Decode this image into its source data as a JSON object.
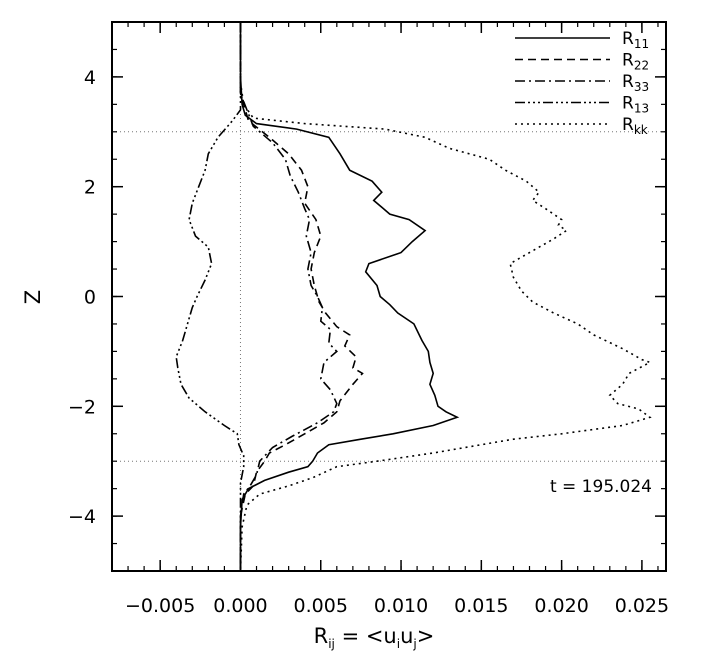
{
  "chart_data": {
    "type": "line",
    "title": "",
    "xlabel": {
      "base": "R",
      "sub": "ij",
      "middle": " = <u",
      "sub2": "i",
      "middle2": "u",
      "sub3": "j",
      "end": ">"
    },
    "ylabel": "Z",
    "xlim": [
      -0.008,
      0.0265
    ],
    "ylim": [
      -5,
      5
    ],
    "xticks": [
      -0.005,
      0.0,
      0.005,
      0.01,
      0.015,
      0.02,
      0.025
    ],
    "xtick_labels": [
      "−0.005",
      "0.000",
      "0.005",
      "0.010",
      "0.015",
      "0.020",
      "0.025"
    ],
    "yticks": [
      -4,
      -2,
      0,
      2,
      4
    ],
    "ytick_labels": [
      "−4",
      "−2",
      "0",
      "2",
      "4"
    ],
    "grid": false,
    "reference_lines": {
      "vertical_x": 0.0,
      "horizontal_z": [
        3,
        -3
      ]
    },
    "annotation": "t = 195.024",
    "legend_position": "top-right",
    "series": [
      {
        "name": "R",
        "sub": "11",
        "dash": "",
        "points": [
          [
            0.0,
            5
          ],
          [
            0.0,
            4.0
          ],
          [
            0.0001,
            3.5
          ],
          [
            0.0003,
            3.3
          ],
          [
            0.001,
            3.15
          ],
          [
            0.0035,
            3.05
          ],
          [
            0.0055,
            2.9
          ],
          [
            0.0062,
            2.6
          ],
          [
            0.0068,
            2.3
          ],
          [
            0.0082,
            2.1
          ],
          [
            0.0088,
            1.9
          ],
          [
            0.0083,
            1.75
          ],
          [
            0.0093,
            1.5
          ],
          [
            0.0105,
            1.4
          ],
          [
            0.0115,
            1.2
          ],
          [
            0.0107,
            1.0
          ],
          [
            0.01,
            0.8
          ],
          [
            0.008,
            0.6
          ],
          [
            0.0078,
            0.45
          ],
          [
            0.0085,
            0.2
          ],
          [
            0.0087,
            0.0
          ],
          [
            0.0093,
            -0.15
          ],
          [
            0.0098,
            -0.3
          ],
          [
            0.0108,
            -0.5
          ],
          [
            0.0113,
            -0.8
          ],
          [
            0.0117,
            -1.0
          ],
          [
            0.0118,
            -1.2
          ],
          [
            0.012,
            -1.4
          ],
          [
            0.0118,
            -1.6
          ],
          [
            0.0121,
            -1.8
          ],
          [
            0.0123,
            -2.0
          ],
          [
            0.0128,
            -2.1
          ],
          [
            0.0135,
            -2.2
          ],
          [
            0.012,
            -2.35
          ],
          [
            0.0095,
            -2.5
          ],
          [
            0.0075,
            -2.6
          ],
          [
            0.0055,
            -2.7
          ],
          [
            0.0048,
            -2.85
          ],
          [
            0.0045,
            -3.0
          ],
          [
            0.0042,
            -3.1
          ],
          [
            0.003,
            -3.2
          ],
          [
            0.0015,
            -3.35
          ],
          [
            0.0005,
            -3.5
          ],
          [
            0.0001,
            -3.7
          ],
          [
            0.0,
            -4.2
          ],
          [
            0.0,
            -5
          ]
        ]
      },
      {
        "name": "R",
        "sub": "22",
        "dash": "8,5",
        "points": [
          [
            0.0,
            5
          ],
          [
            0.0,
            3.7
          ],
          [
            0.0005,
            3.2
          ],
          [
            0.0018,
            2.9
          ],
          [
            0.003,
            2.6
          ],
          [
            0.0038,
            2.3
          ],
          [
            0.0042,
            2.0
          ],
          [
            0.004,
            1.7
          ],
          [
            0.0047,
            1.4
          ],
          [
            0.005,
            1.1
          ],
          [
            0.0046,
            0.8
          ],
          [
            0.0044,
            0.5
          ],
          [
            0.0046,
            0.2
          ],
          [
            0.0049,
            -0.1
          ],
          [
            0.0053,
            -0.3
          ],
          [
            0.006,
            -0.55
          ],
          [
            0.0068,
            -0.7
          ],
          [
            0.0065,
            -0.9
          ],
          [
            0.0072,
            -1.1
          ],
          [
            0.007,
            -1.3
          ],
          [
            0.0076,
            -1.4
          ],
          [
            0.007,
            -1.6
          ],
          [
            0.0062,
            -1.9
          ],
          [
            0.006,
            -2.1
          ],
          [
            0.0052,
            -2.3
          ],
          [
            0.004,
            -2.5
          ],
          [
            0.0028,
            -2.7
          ],
          [
            0.0018,
            -2.85
          ],
          [
            0.0015,
            -3.0
          ],
          [
            0.001,
            -3.2
          ],
          [
            0.0008,
            -3.45
          ],
          [
            0.0003,
            -3.6
          ],
          [
            0.0,
            -4.0
          ],
          [
            0.0,
            -5
          ]
        ]
      },
      {
        "name": "R",
        "sub": "33",
        "dash": "10,4,2,4",
        "points": [
          [
            0.0,
            5
          ],
          [
            0.0,
            3.7
          ],
          [
            0.0008,
            3.1
          ],
          [
            0.002,
            2.8
          ],
          [
            0.0028,
            2.5
          ],
          [
            0.0031,
            2.2
          ],
          [
            0.0036,
            1.9
          ],
          [
            0.004,
            1.6
          ],
          [
            0.0043,
            1.4
          ],
          [
            0.0041,
            1.1
          ],
          [
            0.0044,
            0.8
          ],
          [
            0.0042,
            0.5
          ],
          [
            0.0044,
            0.2
          ],
          [
            0.0048,
            0.0
          ],
          [
            0.0051,
            -0.2
          ],
          [
            0.005,
            -0.45
          ],
          [
            0.0056,
            -0.6
          ],
          [
            0.0055,
            -0.85
          ],
          [
            0.006,
            -1.0
          ],
          [
            0.0052,
            -1.2
          ],
          [
            0.005,
            -1.5
          ],
          [
            0.0056,
            -1.7
          ],
          [
            0.006,
            -1.95
          ],
          [
            0.0058,
            -2.1
          ],
          [
            0.0048,
            -2.3
          ],
          [
            0.0032,
            -2.55
          ],
          [
            0.002,
            -2.75
          ],
          [
            0.0012,
            -3.0
          ],
          [
            0.001,
            -3.25
          ],
          [
            0.0006,
            -3.45
          ],
          [
            0.0002,
            -3.6
          ],
          [
            0.0,
            -4.0
          ],
          [
            0.0,
            -5
          ]
        ]
      },
      {
        "name": "R",
        "sub": "13",
        "dash": "10,3,2,3,2,3,2,3",
        "points": [
          [
            0.0,
            5
          ],
          [
            0.0,
            3.4
          ],
          [
            -0.0005,
            3.2
          ],
          [
            -0.0014,
            2.9
          ],
          [
            -0.002,
            2.6
          ],
          [
            -0.0022,
            2.3
          ],
          [
            -0.0026,
            2.0
          ],
          [
            -0.003,
            1.7
          ],
          [
            -0.0032,
            1.4
          ],
          [
            -0.0028,
            1.1
          ],
          [
            -0.002,
            0.9
          ],
          [
            -0.0018,
            0.6
          ],
          [
            -0.0022,
            0.3
          ],
          [
            -0.0027,
            0.0
          ],
          [
            -0.003,
            -0.2
          ],
          [
            -0.0033,
            -0.5
          ],
          [
            -0.0036,
            -0.8
          ],
          [
            -0.004,
            -1.1
          ],
          [
            -0.0039,
            -1.3
          ],
          [
            -0.0037,
            -1.6
          ],
          [
            -0.0032,
            -1.85
          ],
          [
            -0.0022,
            -2.1
          ],
          [
            -0.001,
            -2.35
          ],
          [
            -0.0002,
            -2.5
          ],
          [
            -0.0001,
            -2.7
          ],
          [
            0.0002,
            -2.9
          ],
          [
            0.0002,
            -3.1
          ],
          [
            0.0,
            -3.4
          ],
          [
            0.0,
            -5
          ]
        ]
      },
      {
        "name": "R",
        "sub": "kk",
        "dash": "2,4",
        "points": [
          [
            0.0,
            5
          ],
          [
            0.0,
            3.9
          ],
          [
            0.0002,
            3.5
          ],
          [
            0.0008,
            3.25
          ],
          [
            0.004,
            3.15
          ],
          [
            0.009,
            3.05
          ],
          [
            0.0115,
            2.9
          ],
          [
            0.013,
            2.7
          ],
          [
            0.0155,
            2.5
          ],
          [
            0.0165,
            2.3
          ],
          [
            0.0178,
            2.1
          ],
          [
            0.0186,
            1.9
          ],
          [
            0.0182,
            1.75
          ],
          [
            0.019,
            1.6
          ],
          [
            0.02,
            1.4
          ],
          [
            0.0198,
            1.3
          ],
          [
            0.0203,
            1.2
          ],
          [
            0.0195,
            1.05
          ],
          [
            0.018,
            0.8
          ],
          [
            0.0168,
            0.6
          ],
          [
            0.017,
            0.35
          ],
          [
            0.0175,
            0.1
          ],
          [
            0.0182,
            -0.1
          ],
          [
            0.0195,
            -0.3
          ],
          [
            0.021,
            -0.5
          ],
          [
            0.022,
            -0.7
          ],
          [
            0.0238,
            -0.95
          ],
          [
            0.025,
            -1.15
          ],
          [
            0.0255,
            -1.2
          ],
          [
            0.0242,
            -1.4
          ],
          [
            0.0238,
            -1.6
          ],
          [
            0.023,
            -1.8
          ],
          [
            0.0235,
            -1.95
          ],
          [
            0.0248,
            -2.05
          ],
          [
            0.0255,
            -2.2
          ],
          [
            0.0238,
            -2.35
          ],
          [
            0.02,
            -2.5
          ],
          [
            0.017,
            -2.6
          ],
          [
            0.015,
            -2.7
          ],
          [
            0.012,
            -2.85
          ],
          [
            0.0085,
            -3.0
          ],
          [
            0.006,
            -3.1
          ],
          [
            0.0045,
            -3.3
          ],
          [
            0.003,
            -3.45
          ],
          [
            0.0012,
            -3.6
          ],
          [
            0.0004,
            -3.8
          ],
          [
            0.0001,
            -4.2
          ],
          [
            0.0,
            -5
          ]
        ]
      }
    ]
  }
}
